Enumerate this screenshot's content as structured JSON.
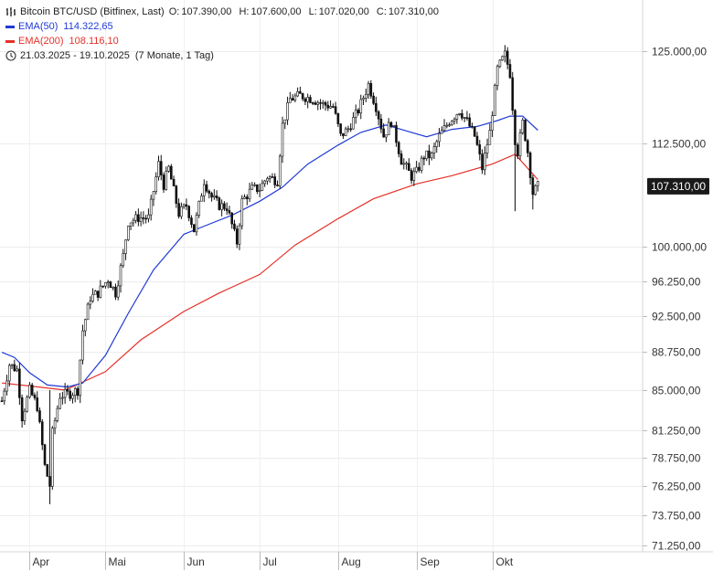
{
  "legend": {
    "instrument": "Bitcoin BTC/USD (Bitfinex, Last)",
    "ohlc": [
      {
        "key": "O:",
        "value": "107.390,00"
      },
      {
        "key": "H:",
        "value": "107.600,00"
      },
      {
        "key": "L:",
        "value": "107.020,00"
      },
      {
        "key": "C:",
        "value": "107.310,00"
      }
    ],
    "ema50": {
      "label": "EMA(50)",
      "value": "114.322,65",
      "color": "#1f3ad6"
    },
    "ema200": {
      "label": "EMA(200)",
      "value": "108.116,10",
      "color": "#e53028"
    },
    "range": "21.03.2025 - 19.10.2025",
    "interval": "(7 Monate, 1 Tag)"
  },
  "last_price_label": "107.310,00",
  "chart_data": {
    "type": "candlestick",
    "x_start": "2025-03-21",
    "x_end": "2025-10-19",
    "y_ticks": [
      {
        "value": 125000,
        "label": "125.000,00"
      },
      {
        "value": 112500,
        "label": "112.500,00"
      },
      {
        "value": 100000,
        "label": "100.000,00"
      },
      {
        "value": 96250,
        "label": "96.250,00"
      },
      {
        "value": 92500,
        "label": "92.500,00"
      },
      {
        "value": 88750,
        "label": "88.750,00"
      },
      {
        "value": 85000,
        "label": "85.000,00"
      },
      {
        "value": 81250,
        "label": "81.250,00"
      },
      {
        "value": 78750,
        "label": "78.750,00"
      },
      {
        "value": 76250,
        "label": "76.250,00"
      },
      {
        "value": 73750,
        "label": "73.750,00"
      },
      {
        "value": 71250,
        "label": "71.250,00"
      }
    ],
    "x_ticks": [
      {
        "date": "2025-04-01",
        "label": "Apr"
      },
      {
        "date": "2025-05-01",
        "label": "Mai"
      },
      {
        "date": "2025-06-01",
        "label": "Jun"
      },
      {
        "date": "2025-07-01",
        "label": "Jul"
      },
      {
        "date": "2025-08-01",
        "label": "Aug"
      },
      {
        "date": "2025-09-01",
        "label": "Sep"
      },
      {
        "date": "2025-10-01",
        "label": "Okt"
      }
    ],
    "series_close": [
      [
        "2025-03-21",
        84000
      ],
      [
        "2025-03-24",
        87500
      ],
      [
        "2025-03-27",
        87000
      ],
      [
        "2025-03-29",
        82500
      ],
      [
        "2025-04-01",
        85000
      ],
      [
        "2025-04-04",
        83500
      ],
      [
        "2025-04-07",
        78000
      ],
      [
        "2025-04-09",
        76300
      ],
      [
        "2025-04-10",
        81000
      ],
      [
        "2025-04-13",
        84500
      ],
      [
        "2025-04-17",
        84700
      ],
      [
        "2025-04-20",
        85000
      ],
      [
        "2025-04-22",
        91000
      ],
      [
        "2025-04-25",
        94500
      ],
      [
        "2025-04-28",
        95000
      ],
      [
        "2025-05-02",
        96500
      ],
      [
        "2025-05-05",
        95000
      ],
      [
        "2025-05-08",
        99000
      ],
      [
        "2025-05-10",
        103000
      ],
      [
        "2025-05-14",
        103500
      ],
      [
        "2025-05-18",
        103500
      ],
      [
        "2025-05-22",
        110000
      ],
      [
        "2025-05-24",
        107500
      ],
      [
        "2025-05-26",
        109500
      ],
      [
        "2025-05-30",
        104000
      ],
      [
        "2025-06-02",
        105000
      ],
      [
        "2025-06-05",
        102000
      ],
      [
        "2025-06-09",
        108000
      ],
      [
        "2025-06-12",
        106000
      ],
      [
        "2025-06-15",
        105000
      ],
      [
        "2025-06-18",
        104800
      ],
      [
        "2025-06-22",
        100500
      ],
      [
        "2025-06-24",
        105500
      ],
      [
        "2025-06-28",
        107000
      ],
      [
        "2025-07-01",
        107000
      ],
      [
        "2025-07-04",
        108500
      ],
      [
        "2025-07-08",
        108000
      ],
      [
        "2025-07-10",
        115000
      ],
      [
        "2025-07-13",
        118500
      ],
      [
        "2025-07-17",
        119000
      ],
      [
        "2025-07-22",
        118500
      ],
      [
        "2025-07-26",
        117800
      ],
      [
        "2025-07-30",
        117500
      ],
      [
        "2025-08-02",
        113500
      ],
      [
        "2025-08-05",
        114500
      ],
      [
        "2025-08-09",
        117000
      ],
      [
        "2025-08-13",
        120500
      ],
      [
        "2025-08-16",
        117500
      ],
      [
        "2025-08-19",
        113500
      ],
      [
        "2025-08-22",
        115500
      ],
      [
        "2025-08-26",
        110500
      ],
      [
        "2025-08-30",
        108500
      ],
      [
        "2025-09-01",
        109000
      ],
      [
        "2025-09-04",
        111000
      ],
      [
        "2025-09-07",
        111000
      ],
      [
        "2025-09-10",
        113500
      ],
      [
        "2025-09-14",
        115500
      ],
      [
        "2025-09-18",
        117000
      ],
      [
        "2025-09-21",
        115500
      ],
      [
        "2025-09-24",
        113500
      ],
      [
        "2025-09-27",
        109500
      ],
      [
        "2025-09-30",
        114000
      ],
      [
        "2025-10-03",
        122500
      ],
      [
        "2025-10-06",
        124500
      ],
      [
        "2025-10-08",
        122000
      ],
      [
        "2025-10-10",
        113000
      ],
      [
        "2025-10-11",
        111500
      ],
      [
        "2025-10-13",
        115300
      ],
      [
        "2025-10-15",
        111500
      ],
      [
        "2025-10-17",
        106500
      ],
      [
        "2025-10-19",
        107310
      ]
    ],
    "ema50": [
      [
        "2025-03-21",
        88700
      ],
      [
        "2025-03-26",
        88200
      ],
      [
        "2025-04-01",
        86700
      ],
      [
        "2025-04-08",
        85500
      ],
      [
        "2025-04-16",
        85300
      ],
      [
        "2025-04-22",
        85700
      ],
      [
        "2025-05-01",
        88400
      ],
      [
        "2025-05-10",
        92800
      ],
      [
        "2025-05-20",
        97500
      ],
      [
        "2025-06-01",
        101500
      ],
      [
        "2025-06-10",
        102600
      ],
      [
        "2025-06-20",
        103800
      ],
      [
        "2025-07-01",
        105500
      ],
      [
        "2025-07-10",
        107200
      ],
      [
        "2025-07-20",
        110000
      ],
      [
        "2025-08-01",
        112300
      ],
      [
        "2025-08-10",
        114000
      ],
      [
        "2025-08-20",
        115000
      ],
      [
        "2025-08-28",
        114200
      ],
      [
        "2025-09-05",
        113400
      ],
      [
        "2025-09-15",
        114400
      ],
      [
        "2025-09-25",
        114800
      ],
      [
        "2025-10-03",
        115600
      ],
      [
        "2025-10-08",
        116200
      ],
      [
        "2025-10-13",
        116200
      ],
      [
        "2025-10-19",
        114300
      ]
    ],
    "ema200": [
      [
        "2025-03-21",
        85700
      ],
      [
        "2025-04-01",
        85400
      ],
      [
        "2025-04-15",
        85000
      ],
      [
        "2025-05-01",
        86800
      ],
      [
        "2025-05-15",
        90000
      ],
      [
        "2025-06-01",
        93000
      ],
      [
        "2025-06-15",
        95000
      ],
      [
        "2025-07-01",
        97000
      ],
      [
        "2025-07-15",
        100200
      ],
      [
        "2025-08-01",
        103400
      ],
      [
        "2025-08-15",
        105800
      ],
      [
        "2025-09-01",
        107600
      ],
      [
        "2025-09-15",
        108600
      ],
      [
        "2025-10-01",
        110000
      ],
      [
        "2025-10-10",
        111200
      ],
      [
        "2025-10-19",
        108116
      ]
    ]
  }
}
